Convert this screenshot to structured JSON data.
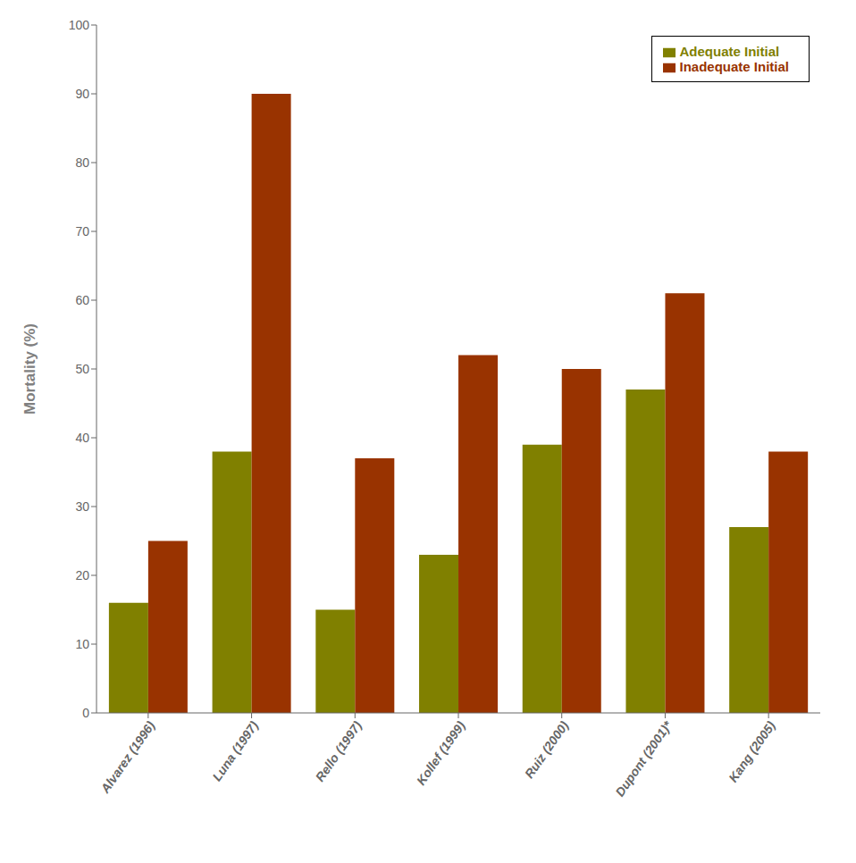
{
  "chart_data": {
    "type": "bar",
    "categories": [
      "Alvarez (1996)",
      "Luna (1997)",
      "Rello (1997)",
      "Kollef (1999)",
      "Ruiz (2000)",
      "Dupont (2001)*",
      "Kang (2005)"
    ],
    "series": [
      {
        "name": "Adequate Initial",
        "color": "#808000",
        "values": [
          16,
          38,
          15,
          23,
          39,
          47,
          27
        ]
      },
      {
        "name": "Inadequate Initial",
        "color": "#993300",
        "values": [
          25,
          90,
          37,
          52,
          50,
          61,
          38
        ]
      }
    ],
    "ylabel": "Mortality (%)",
    "ylim": [
      0,
      100
    ],
    "yticks": [
      0,
      10,
      20,
      30,
      40,
      50,
      60,
      70,
      80,
      90,
      100
    ],
    "grid": false,
    "legend": "upper right"
  }
}
